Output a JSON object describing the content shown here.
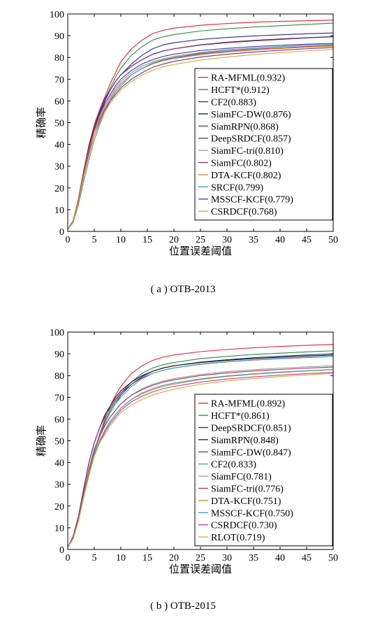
{
  "chart_data": [
    {
      "type": "line",
      "caption": "( a ) OTB-2013",
      "xlabel": "位置误差阈值",
      "ylabel": "精确率",
      "xlim": [
        0,
        50
      ],
      "ylim": [
        0,
        100
      ],
      "xticks": [
        0,
        5,
        10,
        15,
        20,
        25,
        30,
        35,
        40,
        45,
        50
      ],
      "yticks": [
        0,
        10,
        20,
        30,
        40,
        50,
        60,
        70,
        80,
        90,
        100
      ],
      "grid": false,
      "legend_position": "bottom-right",
      "x": [
        0,
        1,
        2,
        3,
        4,
        5,
        6,
        7,
        8,
        9,
        10,
        12,
        14,
        16,
        18,
        20,
        25,
        30,
        35,
        40,
        45,
        50
      ],
      "series": [
        {
          "name": "RA-MFML(0.932)",
          "color": "#e8203a",
          "values": [
            1,
            5,
            15,
            28,
            40,
            49,
            56,
            62,
            68,
            73,
            78,
            84,
            88,
            91,
            92.5,
            93.5,
            94.8,
            95.6,
            96.2,
            96.6,
            96.9,
            97.2
          ]
        },
        {
          "name": "HCFT*(0.912)",
          "color": "#2e8b3e",
          "values": [
            1,
            5,
            14,
            27,
            39,
            48,
            55,
            61,
            66,
            71,
            75,
            81,
            85,
            88,
            89.5,
            90.5,
            92.2,
            93.2,
            94,
            94.6,
            95.2,
            95.8
          ]
        },
        {
          "name": "CF2(0.883)",
          "color": "#2a2a8e",
          "values": [
            1,
            5,
            14,
            27,
            38,
            47,
            54,
            60,
            65,
            69,
            72,
            77,
            81,
            84,
            85.8,
            86.8,
            88.3,
            89.2,
            89.9,
            90.4,
            90.9,
            91.3
          ]
        },
        {
          "name": "SiamFC-DW(0.876)",
          "color": "#1a1a1a",
          "values": [
            1,
            5,
            14,
            27,
            39,
            48,
            55,
            61,
            65,
            69,
            72,
            76,
            79,
            81.5,
            83,
            84,
            85.8,
            87,
            87.8,
            88.5,
            89.1,
            89.6
          ]
        },
        {
          "name": "SiamRPN(0.868)",
          "color": "#7a2a8e",
          "values": [
            1,
            5,
            14,
            27,
            39,
            48,
            55,
            61,
            65,
            69,
            72,
            76,
            79,
            81.5,
            83,
            84,
            85.7,
            86.8,
            87.6,
            88.3,
            89,
            89.5
          ]
        },
        {
          "name": "DeepSRDCF(0.857)",
          "color": "#3a3ab0",
          "values": [
            1,
            5,
            13,
            26,
            37,
            46,
            53,
            59,
            63,
            67,
            70,
            74,
            77,
            79,
            80.5,
            81.5,
            83.2,
            84.2,
            85,
            85.6,
            86.1,
            86.5
          ]
        },
        {
          "name": "SiamFC-tri(0.810)",
          "color": "#9a9a9a",
          "values": [
            1,
            5,
            14,
            26,
            37,
            46,
            53,
            58,
            62,
            66,
            69,
            73,
            76,
            78,
            79.5,
            80.5,
            82.3,
            83.5,
            84.3,
            85,
            85.6,
            86
          ]
        },
        {
          "name": "SiamFC(0.802)",
          "color": "#b03050",
          "values": [
            1,
            5,
            14,
            26,
            37,
            46,
            52,
            57,
            61,
            65,
            68,
            72,
            75,
            77,
            78.7,
            79.8,
            81.6,
            82.8,
            83.7,
            84.4,
            85,
            85.5
          ]
        },
        {
          "name": "DTA-KCF(0.802)",
          "color": "#e08a20",
          "values": [
            1,
            5,
            14,
            26,
            37,
            46,
            52,
            57,
            61,
            65,
            68,
            72,
            75,
            77,
            78.5,
            79.5,
            81.3,
            82.5,
            83.4,
            84.1,
            84.7,
            85.2
          ]
        },
        {
          "name": "SRCF(0.799)",
          "color": "#3a9ab8",
          "values": [
            1,
            4,
            12,
            23,
            33,
            42,
            49,
            55,
            60,
            64,
            67,
            72,
            75,
            77.5,
            79,
            80,
            82,
            83.3,
            84.2,
            85,
            85.6,
            86.1
          ]
        },
        {
          "name": "MSSCF-KCF(0.779)",
          "color": "#6a2a9a",
          "values": [
            1,
            5,
            13,
            25,
            36,
            44,
            51,
            56,
            60,
            63,
            66,
            70,
            73,
            75.5,
            77,
            78.2,
            80.2,
            81.5,
            82.5,
            83.3,
            84,
            84.6
          ]
        },
        {
          "name": "CSRDCF(0.768)",
          "color": "#d8a830",
          "values": [
            1,
            5,
            13,
            25,
            35,
            44,
            50,
            55,
            59,
            62,
            65,
            69,
            72,
            74,
            75.7,
            76.8,
            78.8,
            80.2,
            81.3,
            82.2,
            83,
            83.7
          ]
        }
      ]
    },
    {
      "type": "line",
      "caption": "( b ) OTB-2015",
      "xlabel": "位置误差阈值",
      "ylabel": "精确率",
      "xlim": [
        0,
        50
      ],
      "ylim": [
        0,
        100
      ],
      "xticks": [
        0,
        5,
        10,
        15,
        20,
        25,
        30,
        35,
        40,
        45,
        50
      ],
      "yticks": [
        0,
        10,
        20,
        30,
        40,
        50,
        60,
        70,
        80,
        90,
        100
      ],
      "grid": false,
      "legend_position": "bottom-right",
      "x": [
        0,
        1,
        2,
        3,
        4,
        5,
        6,
        7,
        8,
        9,
        10,
        12,
        14,
        16,
        18,
        20,
        25,
        30,
        35,
        40,
        45,
        50
      ],
      "series": [
        {
          "name": "RA-MFML(0.892)",
          "color": "#e8203a",
          "values": [
            1,
            5,
            13,
            25,
            36,
            45,
            53,
            60,
            66,
            71,
            75,
            81,
            84.5,
            87,
            88.5,
            89.5,
            91,
            92,
            92.8,
            93.4,
            93.9,
            94.3
          ]
        },
        {
          "name": "HCFT*(0.861)",
          "color": "#2e8b3e",
          "values": [
            1,
            5,
            13,
            25,
            36,
            45,
            52,
            59,
            64,
            68,
            72,
            77,
            81,
            83.5,
            85,
            86,
            87.8,
            88.8,
            89.7,
            90.3,
            90.9,
            91.4
          ]
        },
        {
          "name": "DeepSRDCF(0.851)",
          "color": "#2a2a8e",
          "values": [
            1,
            5,
            13,
            25,
            36,
            45,
            52,
            58,
            63,
            67,
            71,
            76,
            79.5,
            82,
            83.5,
            84.5,
            86.2,
            87.3,
            88.2,
            88.9,
            89.5,
            90
          ]
        },
        {
          "name": "SiamRPN(0.848)",
          "color": "#1a1a1a",
          "values": [
            1,
            6,
            15,
            28,
            40,
            49,
            56,
            62,
            66,
            70,
            73,
            77,
            80,
            82,
            83.5,
            84.5,
            86,
            87,
            87.8,
            88.4,
            89,
            89.4
          ]
        },
        {
          "name": "SiamFC-DW(0.847)",
          "color": "#7a2a8e",
          "values": [
            1,
            6,
            15,
            28,
            40,
            49,
            56,
            61,
            65,
            69,
            72,
            76,
            79,
            81,
            82.5,
            83.5,
            85.2,
            86.3,
            87.1,
            87.8,
            88.3,
            88.8
          ]
        },
        {
          "name": "CF2(0.833)",
          "color": "#3ab0a0",
          "values": [
            1,
            5,
            13,
            25,
            36,
            45,
            52,
            58,
            63,
            67,
            70,
            75,
            78.5,
            81,
            82.5,
            83.5,
            85.3,
            86.4,
            87.2,
            87.9,
            88.4,
            88.8
          ]
        },
        {
          "name": "SiamFC(0.781)",
          "color": "#9a9a9a",
          "values": [
            1,
            5,
            14,
            26,
            37,
            46,
            52,
            57,
            61,
            64,
            67,
            71,
            74,
            76,
            77.5,
            78.6,
            80.5,
            81.8,
            82.7,
            83.4,
            84,
            84.5
          ]
        },
        {
          "name": "SiamFC-tri(0.776)",
          "color": "#b03050",
          "values": [
            1,
            5,
            14,
            26,
            37,
            46,
            52,
            57,
            61,
            64,
            67,
            71,
            73.5,
            75.5,
            77,
            78,
            80,
            81.2,
            82.1,
            82.8,
            83.4,
            83.9
          ]
        },
        {
          "name": "DTA-KCF(0.751)",
          "color": "#e08a20",
          "values": [
            1,
            5,
            13,
            25,
            36,
            44,
            50,
            55,
            59,
            62,
            65,
            69,
            71.5,
            73.5,
            75,
            76,
            78.2,
            79.6,
            80.6,
            81.4,
            82.1,
            82.7
          ]
        },
        {
          "name": "MSSCF-KCF(0.750)",
          "color": "#3a9ab8",
          "values": [
            1,
            5,
            13,
            25,
            35,
            44,
            50,
            55,
            59,
            62,
            65,
            69,
            72,
            74,
            75.5,
            76.5,
            78.5,
            79.8,
            80.8,
            81.6,
            82.2,
            82.8
          ]
        },
        {
          "name": "CSRDCF(0.730)",
          "color": "#c03a9a",
          "values": [
            1,
            5,
            13,
            24,
            34,
            43,
            49,
            54,
            58,
            61,
            64,
            68,
            70.5,
            72.5,
            74,
            75,
            77,
            78.4,
            79.4,
            80.2,
            80.9,
            81.5
          ]
        },
        {
          "name": "RLOT(0.719)",
          "color": "#d8a830",
          "values": [
            1,
            5,
            13,
            24,
            34,
            43,
            49,
            53,
            57,
            60,
            63,
            66.5,
            69,
            71,
            72.5,
            73.7,
            76,
            77.5,
            78.6,
            79.5,
            80.3,
            81
          ]
        }
      ]
    }
  ]
}
